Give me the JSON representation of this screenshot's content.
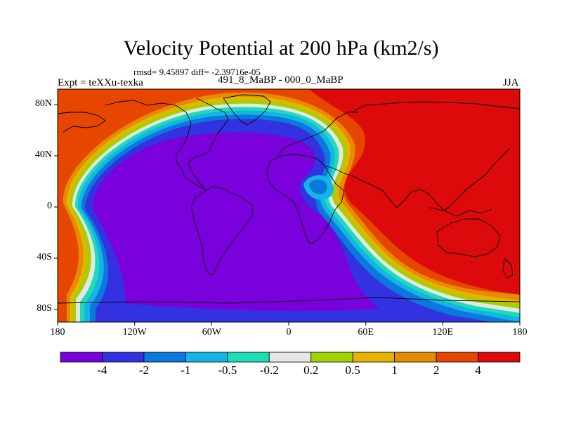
{
  "title": "Velocity Potential at 200 hPa (km2/s)",
  "stats": "rmsd= 9.45897 diff= -2.39716e-05",
  "expt_label": "Expt = teXXu-texka",
  "case_name": "491_8_MaBP - 000_0_MaBP",
  "season": "JJA",
  "lat_ticks": [
    "80N",
    "40N",
    "0",
    "40S",
    "80S"
  ],
  "lon_ticks": [
    "180",
    "120W",
    "60W",
    "0",
    "60E",
    "120E",
    "180"
  ],
  "colorbar": {
    "labels": [
      "-4",
      "-2",
      "-1",
      "-0.5",
      "-0.2",
      "0.2",
      "0.5",
      "1",
      "2",
      "4"
    ],
    "colors": [
      "#7a00dc",
      "#3232e0",
      "#0a78dc",
      "#14b4e6",
      "#1edcb4",
      "#e6e6e6",
      "#a0d200",
      "#e6b400",
      "#e68c00",
      "#e64600",
      "#dc0a0a"
    ]
  }
}
